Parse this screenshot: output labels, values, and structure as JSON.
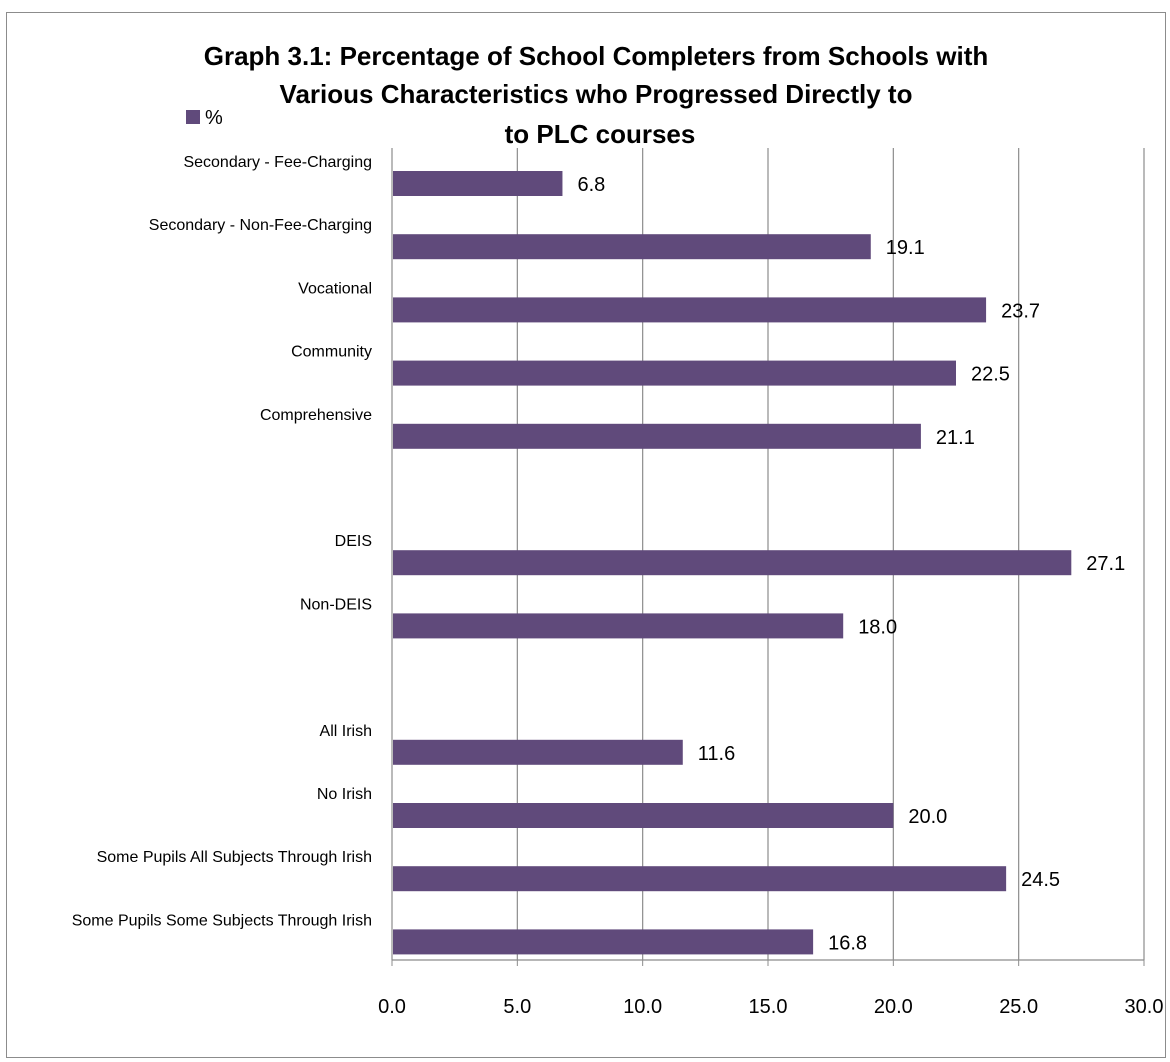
{
  "chart_data": {
    "type": "bar",
    "orientation": "horizontal",
    "title_lines": [
      "Graph 3.1: Percentage of School Completers from Schools with",
      "Various Characteristics who Progressed Directly to",
      "to PLC courses"
    ],
    "legend": {
      "entries": [
        "%"
      ],
      "placement": "top-left"
    },
    "xlim": [
      0,
      30
    ],
    "ticks": [
      0,
      5,
      10,
      15,
      20,
      25,
      30
    ],
    "tick_labels": [
      "0.0",
      "5.0",
      "10.0",
      "15.0",
      "20.0",
      "25.0",
      "30.0"
    ],
    "grid": true,
    "series_color": "#604a7b",
    "categories": [
      "Secondary - Fee-Charging",
      "Secondary - Non-Fee-Charging",
      "Vocational",
      "Community",
      "Comprehensive",
      "",
      "DEIS",
      "Non-DEIS",
      "",
      "All Irish",
      "No Irish",
      "Some Pupils All Subjects Through Irish",
      "Some Pupils Some Subjects Through Irish"
    ],
    "values": [
      6.8,
      19.1,
      23.7,
      22.5,
      21.1,
      null,
      27.1,
      18.0,
      null,
      11.6,
      20.0,
      24.5,
      16.8
    ],
    "data_labels": [
      "6.8",
      "19.1",
      "23.7",
      "22.5",
      "21.1",
      "",
      "27.1",
      "18.0",
      "",
      "11.6",
      "20.0",
      "24.5",
      "16.8"
    ]
  }
}
